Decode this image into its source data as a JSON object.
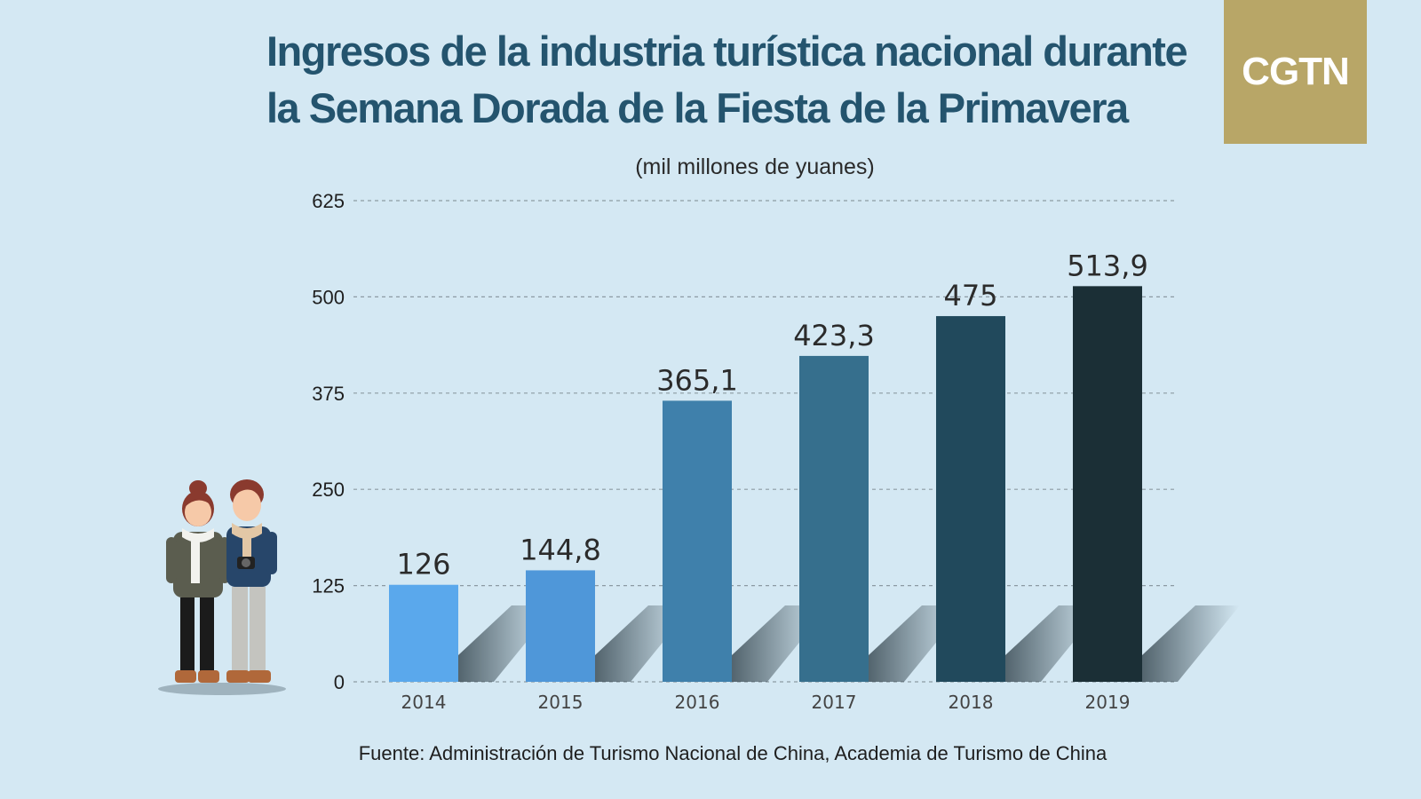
{
  "title": "Ingresos de la industria turística nacional durante la Semana Dorada de la Fiesta de la Primavera",
  "logo_text": "CGTN",
  "source": "Fuente: Administración de Turismo Nacional de China, Academia de Turismo de China",
  "colors": {
    "background": "#d4e8f3",
    "title": "#24546e",
    "logo_bg": "#b8a667"
  },
  "chart_data": {
    "type": "bar",
    "title": "Ingresos de la industria turística nacional durante la Semana Dorada de la Fiesta de la Primavera",
    "ylabel": "(mil millones de yuanes)",
    "xlabel": "",
    "categories": [
      "2014",
      "2015",
      "2016",
      "2017",
      "2018",
      "2019"
    ],
    "values": [
      126,
      144.8,
      365.1,
      423.3,
      475,
      513.9
    ],
    "value_labels": [
      "126",
      "144,8",
      "365,1",
      "423,3",
      "475",
      "513,9"
    ],
    "bar_colors": [
      "#5aa8ec",
      "#4f97d9",
      "#3f80ab",
      "#366f8d",
      "#21495c",
      "#1b2f36"
    ],
    "yticks": [
      0,
      125,
      250,
      375,
      500,
      625
    ],
    "ylim": [
      0,
      625
    ],
    "grid": true,
    "legend": "none"
  }
}
